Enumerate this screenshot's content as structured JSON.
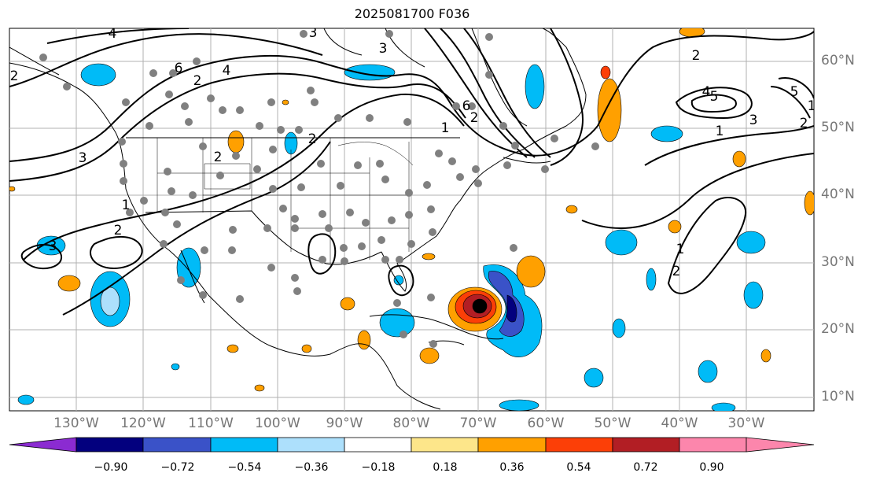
{
  "title": "2025081700 F036",
  "latitude_labels": [
    "60°N",
    "50°N",
    "40°N",
    "30°N",
    "20°N",
    "10°N"
  ],
  "longitude_labels": [
    "130°W",
    "120°W",
    "110°W",
    "100°W",
    "90°W",
    "80°W",
    "70°W",
    "60°W",
    "50°W",
    "40°W",
    "30°W"
  ],
  "colorbar": {
    "bins": [
      {
        "color": "#8b2bd1"
      },
      {
        "color": "#03007e"
      },
      {
        "color": "#3a52c8"
      },
      {
        "color": "#00bbf7"
      },
      {
        "color": "#ade0fc"
      },
      {
        "color": "#ffffff"
      },
      {
        "color": "#fde68a"
      },
      {
        "color": "#ffa000"
      },
      {
        "color": "#fc3f07"
      },
      {
        "color": "#b21e24"
      },
      {
        "color": "#fc86ac"
      }
    ],
    "tick_labels": [
      "−0.90",
      "−0.72",
      "−0.54",
      "−0.36",
      "−0.18",
      "0.18",
      "0.36",
      "0.54",
      "0.72",
      "0.90"
    ]
  },
  "contour_labels": [
    "4",
    "3",
    "2",
    "6",
    "4",
    "3",
    "2",
    "2",
    "3",
    "2",
    "2",
    "1",
    "6",
    "2",
    "3",
    "1",
    "4",
    "5",
    "5",
    "1",
    "3",
    "2",
    "2",
    "1",
    "2",
    "1"
  ],
  "colors": {
    "station_dot": "#808080",
    "coastline": "#000000",
    "grid": "#b0b0b0",
    "contour": "#000000",
    "storm_center": "#000000"
  }
}
